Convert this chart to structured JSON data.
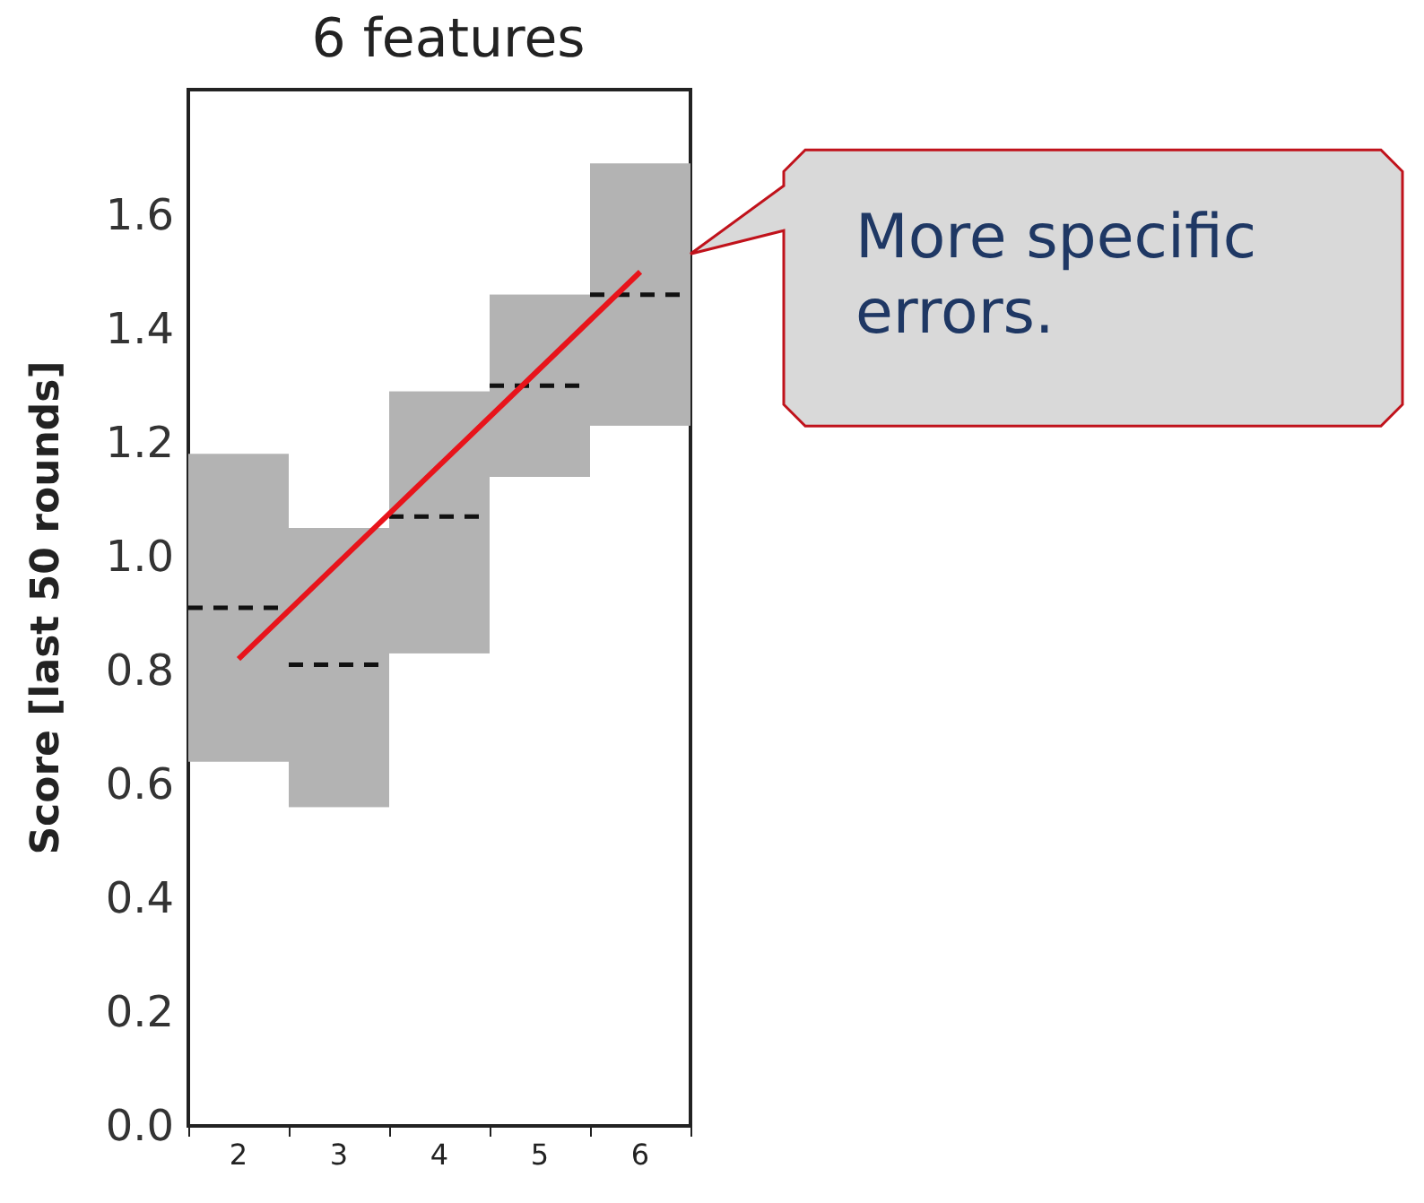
{
  "chart_data": {
    "type": "box",
    "title": "6 features",
    "ylabel": "Score [last 50 rounds]",
    "categories": [
      "2",
      "3",
      "4",
      "5",
      "6"
    ],
    "boxes": [
      {
        "low": 0.64,
        "q1": 0.64,
        "median": 0.91,
        "q3": 1.18,
        "high": 1.18
      },
      {
        "low": 0.56,
        "q1": 0.56,
        "median": 0.81,
        "q3": 1.05,
        "high": 1.05
      },
      {
        "low": 0.83,
        "q1": 0.83,
        "median": 1.07,
        "q3": 1.29,
        "high": 1.29
      },
      {
        "low": 1.14,
        "q1": 1.14,
        "median": 1.3,
        "q3": 1.46,
        "high": 1.46
      },
      {
        "low": 1.23,
        "q1": 1.23,
        "median": 1.46,
        "q3": 1.69,
        "high": 1.69
      }
    ],
    "color": "#b3b3b3",
    "series": [
      {
        "type": "line",
        "values": [
          0.82,
          0.99,
          1.16,
          1.33,
          1.5
        ],
        "color": "#e8141b"
      }
    ],
    "ylim": [
      0,
      1.82
    ],
    "yticks": [
      {
        "value": 0,
        "label": "0.0"
      },
      {
        "value": 0.2,
        "label": "0.2"
      },
      {
        "value": 0.4,
        "label": "0.4"
      },
      {
        "value": 0.6,
        "label": "0.6"
      },
      {
        "value": 0.8,
        "label": "0.8"
      },
      {
        "value": 1.0,
        "label": "1.0"
      },
      {
        "value": 1.2,
        "label": "1.2"
      },
      {
        "value": 1.4,
        "label": "1.4"
      },
      {
        "value": 1.6,
        "label": "1.6"
      }
    ],
    "annotations": [
      "More specific errors."
    ],
    "grid": false
  }
}
